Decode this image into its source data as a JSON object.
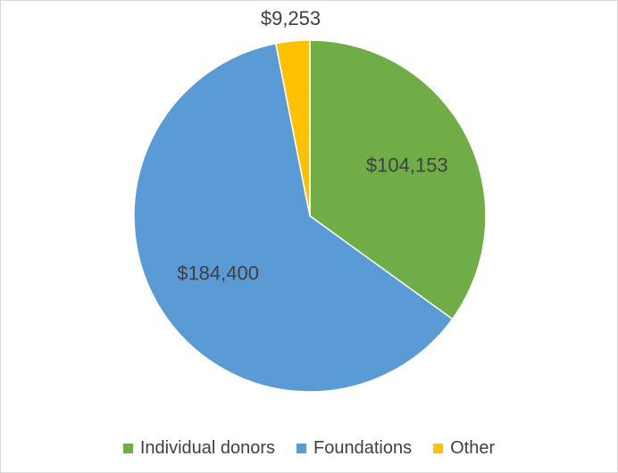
{
  "chart_data": {
    "type": "pie",
    "categories": [
      "Individual donors",
      "Foundations",
      "Other"
    ],
    "values": [
      104153,
      184400,
      9253
    ],
    "data_labels": [
      "$104,153",
      "$184,400",
      "$9,253"
    ],
    "colors": [
      "#70AD47",
      "#5B9BD5",
      "#FFC000"
    ],
    "start_angle": "12 o'clock",
    "direction": "clockwise",
    "legend_placement": "bottom"
  }
}
